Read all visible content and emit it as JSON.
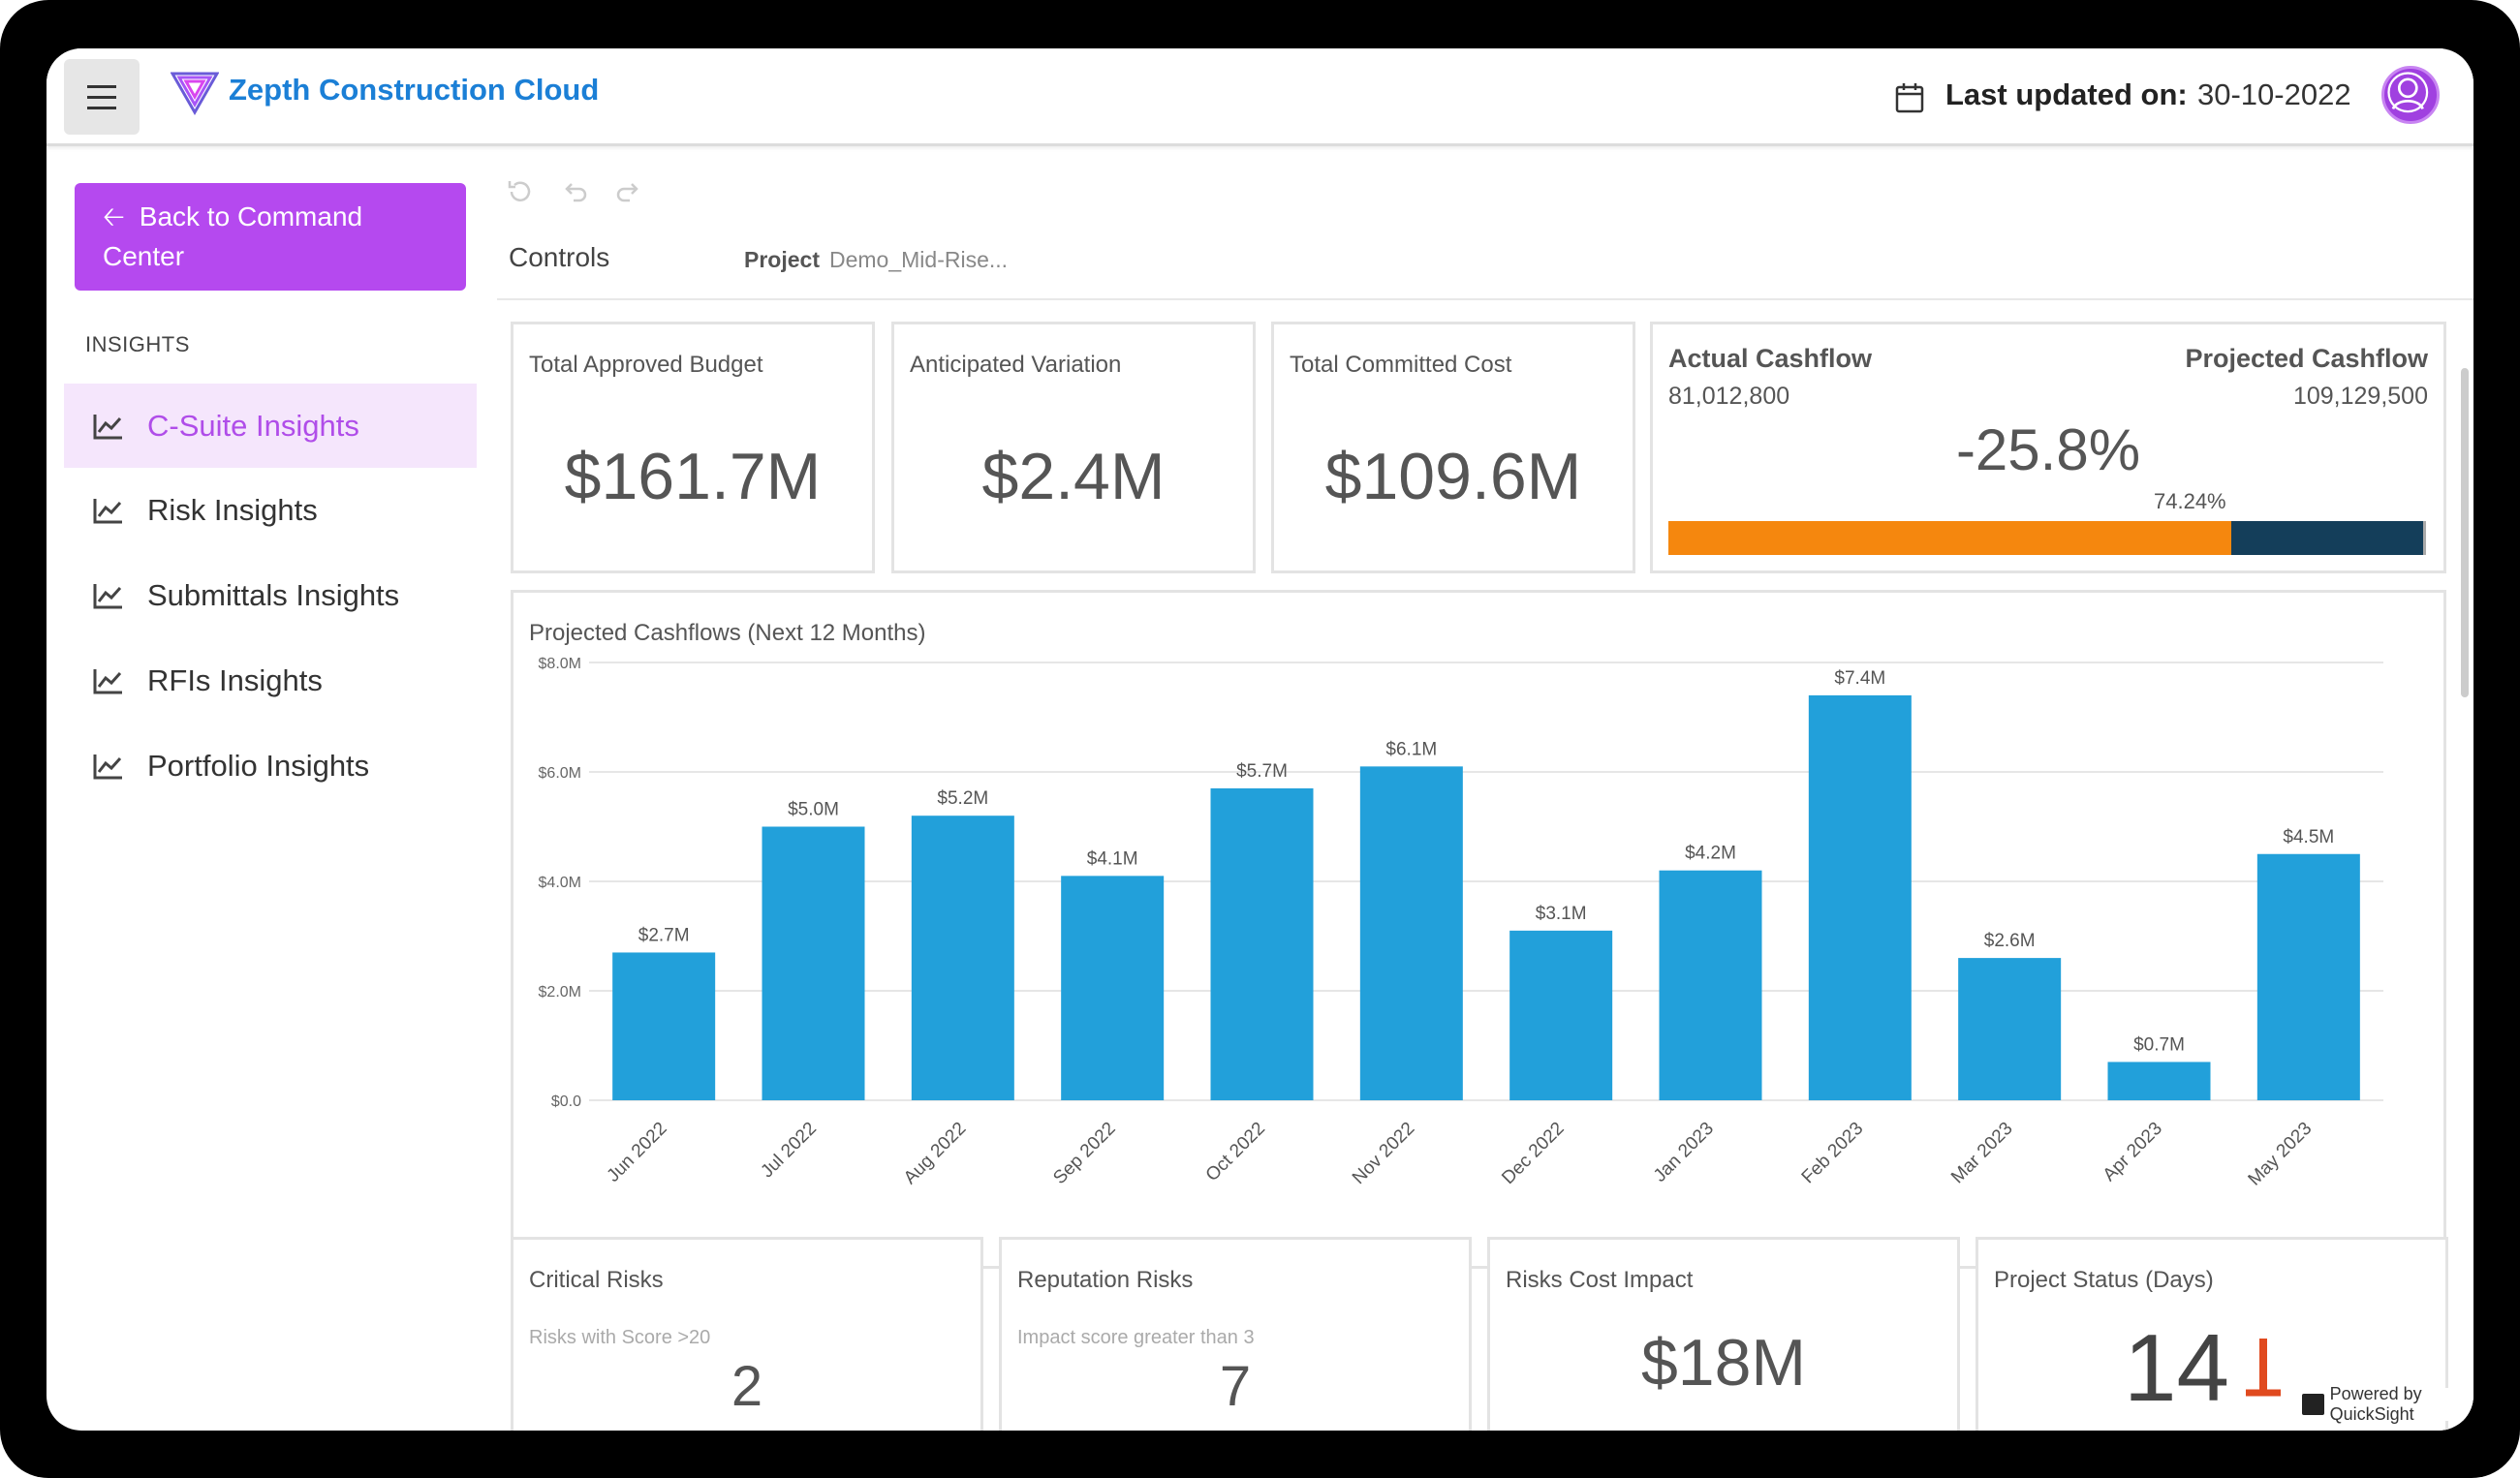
{
  "header": {
    "app_title": "Zepth Construction Cloud",
    "last_updated_label": "Last updated on:",
    "last_updated_value": "30-10-2022"
  },
  "sidebar": {
    "back_button": "Back to Command Center",
    "section_title": "INSIGHTS",
    "items": [
      {
        "label": "C-Suite Insights",
        "active": true
      },
      {
        "label": "Risk Insights"
      },
      {
        "label": "Submittals Insights"
      },
      {
        "label": "RFIs Insights"
      },
      {
        "label": "Portfolio Insights"
      }
    ]
  },
  "controls": {
    "label": "Controls",
    "project_label": "Project",
    "project_value": "Demo_Mid-Rise..."
  },
  "kpis": [
    {
      "title": "Total Approved Budget",
      "value": "$161.7M"
    },
    {
      "title": "Anticipated Variation",
      "value": "$2.4M"
    },
    {
      "title": "Total Committed Cost",
      "value": "$109.6M"
    }
  ],
  "cashflow": {
    "actual_label": "Actual Cashflow",
    "actual_value": "81,012,800",
    "projected_label": "Projected Cashflow",
    "projected_value": "109,129,500",
    "change": "-25.8%",
    "progress_label": "74.24%",
    "progress": 0.7424,
    "colors": {
      "fill": "#f5870e",
      "track": "#143e5a"
    }
  },
  "chart_data": {
    "type": "bar",
    "title": "Projected Cashflows (Next 12 Months)",
    "categories": [
      "Jun 2022",
      "Jul 2022",
      "Aug 2022",
      "Sep 2022",
      "Oct 2022",
      "Nov 2022",
      "Dec 2022",
      "Jan 2023",
      "Feb 2023",
      "Mar 2023",
      "Apr 2023",
      "May 2023"
    ],
    "values": [
      2.7,
      5.0,
      5.2,
      4.1,
      5.7,
      6.1,
      3.1,
      4.2,
      7.4,
      2.6,
      0.7,
      4.5
    ],
    "data_labels": [
      "$2.7M",
      "$5.0M",
      "$5.2M",
      "$4.1M",
      "$5.7M",
      "$6.1M",
      "$3.1M",
      "$4.2M",
      "$7.4M",
      "$2.6M",
      "$0.7M",
      "$4.5M"
    ],
    "yticks": [
      0,
      2,
      4,
      6,
      8
    ],
    "ytick_labels": [
      "$0.0",
      "$2.0M",
      "$4.0M",
      "$6.0M",
      "$8.0M"
    ],
    "ylim": [
      0,
      8
    ],
    "grid": true,
    "color": "#22a0da"
  },
  "bottom_cards": [
    {
      "title": "Critical Risks",
      "subtitle": "Risks with Score >20",
      "value": "2"
    },
    {
      "title": "Reputation Risks",
      "subtitle": "Impact score greater than 3",
      "value": "7"
    },
    {
      "title": "Risks Cost Impact",
      "value": "$18M"
    },
    {
      "title": "Project Status (Days)",
      "value": "14"
    }
  ],
  "footer": {
    "powered_by": "Powered by QuickSight"
  }
}
